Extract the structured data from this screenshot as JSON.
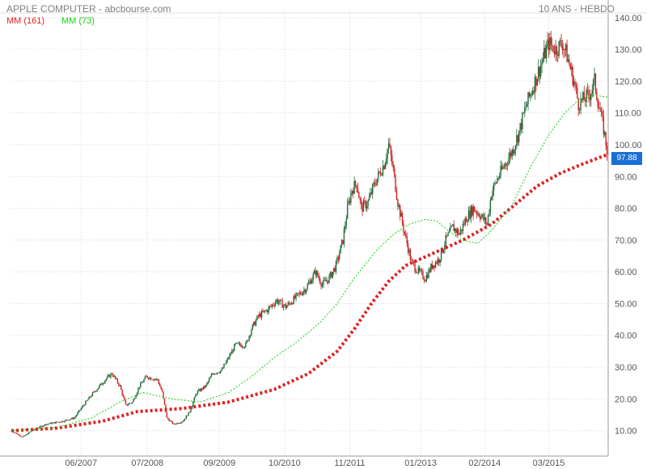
{
  "header": {
    "title": "APPLE COMPUTER - abcbourse.com",
    "period": "10 ANS - HEBDO"
  },
  "legend": [
    {
      "label": "MM (161)",
      "color": "#e02020"
    },
    {
      "label": "MM (73)",
      "color": "#10d010"
    }
  ],
  "last_price": {
    "label": "97.88",
    "value": 97.88,
    "bg_color": "#1a6fd6"
  },
  "colors": {
    "up": "#1f6b3a",
    "down": "#cc2222",
    "grid": "#d7d7d7",
    "axis": "#9a9a9a",
    "label": "#555555"
  },
  "chart_data": {
    "type": "line",
    "xlabel": "",
    "ylabel": "",
    "ylim": [
      2.0,
      142.0
    ],
    "x_ticks": [
      {
        "label": "06/2007",
        "week": 61
      },
      {
        "label": "07/2008",
        "week": 119
      },
      {
        "label": "09/2009",
        "week": 182
      },
      {
        "label": "10/2010",
        "week": 239
      },
      {
        "label": "11/2011",
        "week": 296
      },
      {
        "label": "01/2013",
        "week": 358
      },
      {
        "label": "02/2014",
        "week": 414
      },
      {
        "label": "03/2015",
        "week": 470
      }
    ],
    "y_ticks": [
      {
        "label": "10.00",
        "value": 10
      },
      {
        "label": "20.00",
        "value": 20
      },
      {
        "label": "30.00",
        "value": 30
      },
      {
        "label": "40.00",
        "value": 40
      },
      {
        "label": "50.00",
        "value": 50
      },
      {
        "label": "60.00",
        "value": 60
      },
      {
        "label": "70.00",
        "value": 70
      },
      {
        "label": "80.00",
        "value": 80
      },
      {
        "label": "90.00",
        "value": 90
      },
      {
        "label": "100.00",
        "value": 100
      },
      {
        "label": "110.00",
        "value": 110
      },
      {
        "label": "120.00",
        "value": 120
      },
      {
        "label": "130.00",
        "value": 130
      },
      {
        "label": "140.00",
        "value": 140
      }
    ],
    "week_range": [
      0,
      522
    ],
    "price_series": {
      "name": "",
      "points": [
        [
          0,
          10
        ],
        [
          10,
          8
        ],
        [
          18,
          10
        ],
        [
          30,
          12
        ],
        [
          45,
          13
        ],
        [
          55,
          14
        ],
        [
          63,
          18
        ],
        [
          72,
          22
        ],
        [
          82,
          26
        ],
        [
          88,
          28
        ],
        [
          95,
          24
        ],
        [
          100,
          18
        ],
        [
          106,
          19
        ],
        [
          112,
          24
        ],
        [
          118,
          27
        ],
        [
          128,
          26
        ],
        [
          132,
          22
        ],
        [
          136,
          14
        ],
        [
          142,
          12
        ],
        [
          150,
          13
        ],
        [
          156,
          16
        ],
        [
          162,
          22
        ],
        [
          170,
          24
        ],
        [
          176,
          28
        ],
        [
          184,
          29
        ],
        [
          190,
          33
        ],
        [
          196,
          37
        ],
        [
          205,
          37
        ],
        [
          210,
          42
        ],
        [
          216,
          46
        ],
        [
          224,
          48
        ],
        [
          232,
          51
        ],
        [
          240,
          49
        ],
        [
          246,
          51
        ],
        [
          252,
          53
        ],
        [
          258,
          55
        ],
        [
          266,
          60
        ],
        [
          272,
          56
        ],
        [
          278,
          58
        ],
        [
          284,
          62
        ],
        [
          290,
          70
        ],
        [
          294,
          80
        ],
        [
          298,
          86
        ],
        [
          302,
          88
        ],
        [
          306,
          80
        ],
        [
          312,
          82
        ],
        [
          318,
          88
        ],
        [
          326,
          94
        ],
        [
          330,
          100
        ],
        [
          334,
          92
        ],
        [
          338,
          82
        ],
        [
          344,
          72
        ],
        [
          350,
          63
        ],
        [
          356,
          60
        ],
        [
          362,
          58
        ],
        [
          368,
          62
        ],
        [
          374,
          64
        ],
        [
          380,
          70
        ],
        [
          386,
          74
        ],
        [
          392,
          72
        ],
        [
          398,
          77
        ],
        [
          404,
          80
        ],
        [
          410,
          78
        ],
        [
          416,
          75
        ],
        [
          420,
          85
        ],
        [
          426,
          90
        ],
        [
          432,
          94
        ],
        [
          438,
          98
        ],
        [
          444,
          104
        ],
        [
          450,
          112
        ],
        [
          456,
          118
        ],
        [
          460,
          122
        ],
        [
          466,
          128
        ],
        [
          470,
          132
        ],
        [
          476,
          130
        ],
        [
          482,
          132
        ],
        [
          486,
          128
        ],
        [
          492,
          120
        ],
        [
          496,
          113
        ],
        [
          500,
          114
        ],
        [
          506,
          116
        ],
        [
          510,
          120
        ],
        [
          514,
          112
        ],
        [
          518,
          105
        ],
        [
          522,
          96
        ]
      ]
    },
    "series": [
      {
        "name": "MM (161)",
        "style": "dotted",
        "points": [
          [
            0,
            10
          ],
          [
            40,
            10.8
          ],
          [
            80,
            13
          ],
          [
            110,
            16
          ],
          [
            150,
            17
          ],
          [
            190,
            19
          ],
          [
            230,
            23
          ],
          [
            260,
            28
          ],
          [
            285,
            35
          ],
          [
            300,
            42
          ],
          [
            315,
            50
          ],
          [
            330,
            57
          ],
          [
            345,
            62
          ],
          [
            370,
            66
          ],
          [
            395,
            70
          ],
          [
            420,
            75
          ],
          [
            440,
            81
          ],
          [
            460,
            87
          ],
          [
            480,
            91
          ],
          [
            500,
            94
          ],
          [
            522,
            97
          ]
        ]
      },
      {
        "name": "MM (73)",
        "style": "dashed",
        "points": [
          [
            0,
            10
          ],
          [
            40,
            11
          ],
          [
            70,
            14
          ],
          [
            95,
            19
          ],
          [
            115,
            22
          ],
          [
            140,
            20
          ],
          [
            165,
            19
          ],
          [
            190,
            22
          ],
          [
            210,
            27
          ],
          [
            230,
            33
          ],
          [
            250,
            38
          ],
          [
            270,
            44
          ],
          [
            285,
            50
          ],
          [
            300,
            58
          ],
          [
            320,
            67
          ],
          [
            335,
            72
          ],
          [
            348,
            75
          ],
          [
            362,
            76.5
          ],
          [
            372,
            76
          ],
          [
            382,
            73
          ],
          [
            394,
            70
          ],
          [
            408,
            69
          ],
          [
            420,
            73
          ],
          [
            438,
            81
          ],
          [
            454,
            93
          ],
          [
            470,
            103
          ],
          [
            484,
            110
          ],
          [
            496,
            114
          ],
          [
            510,
            115.5
          ],
          [
            522,
            115
          ]
        ]
      }
    ]
  }
}
